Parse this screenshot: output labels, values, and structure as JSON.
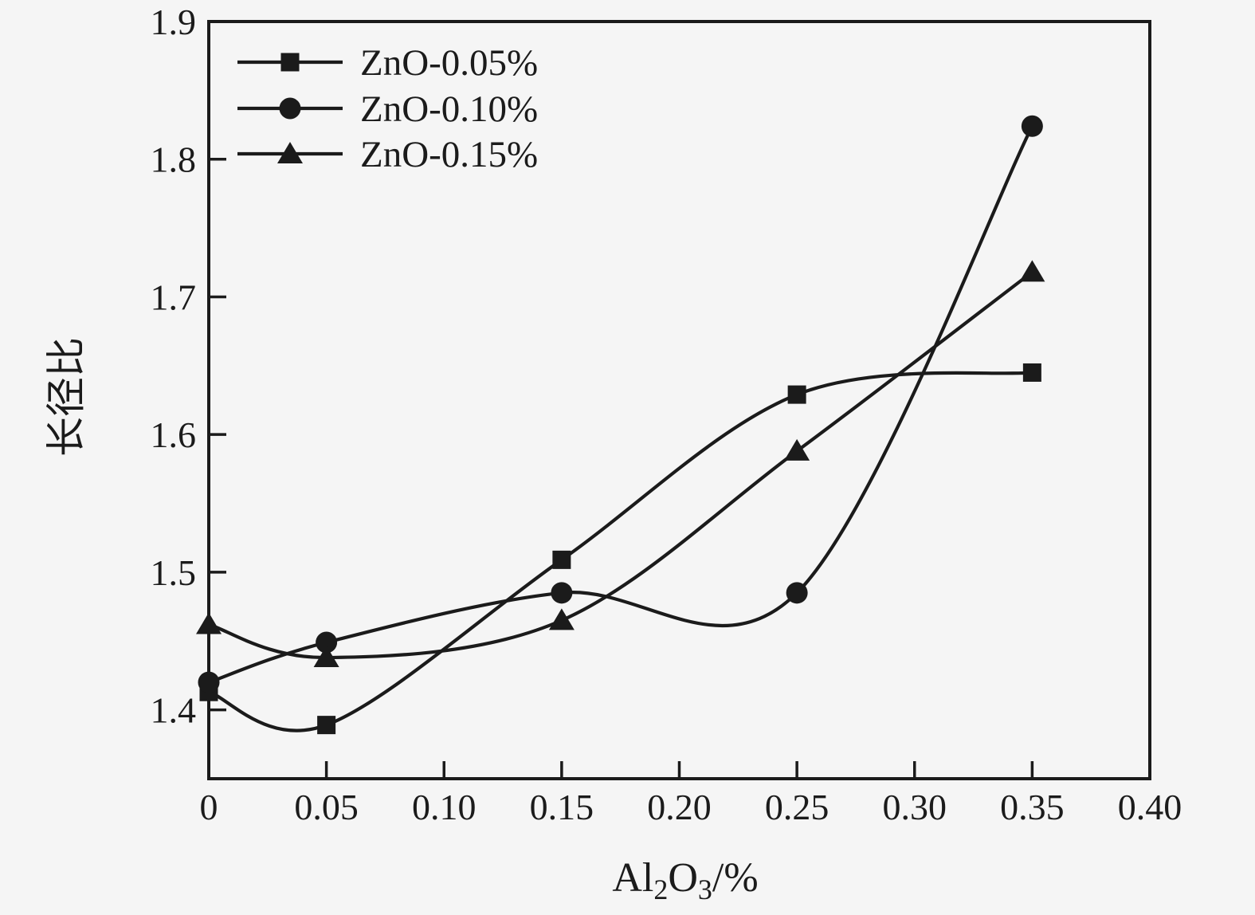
{
  "figure": {
    "kind": "scientific-line-plot",
    "background_color": "#f5f5f5",
    "ink_color": "#1b1b1b"
  },
  "chart_data": {
    "type": "line",
    "title": "",
    "xlabel": "Al2O3/%",
    "xlabel_parts": [
      {
        "text": "Al",
        "sub": false
      },
      {
        "text": "2",
        "sub": true
      },
      {
        "text": "O",
        "sub": false
      },
      {
        "text": "3",
        "sub": true
      },
      {
        "text": "/%",
        "sub": false
      }
    ],
    "ylabel": "长径比",
    "xlim": [
      0,
      0.4
    ],
    "ylim": [
      1.35,
      1.9
    ],
    "grid": false,
    "legend_position": "top-left-inside",
    "x_ticks": [
      {
        "value": 0,
        "label": "0"
      },
      {
        "value": 0.05,
        "label": "0.05"
      },
      {
        "value": 0.1,
        "label": "0.10"
      },
      {
        "value": 0.15,
        "label": "0.15"
      },
      {
        "value": 0.2,
        "label": "0.20"
      },
      {
        "value": 0.25,
        "label": "0.25"
      },
      {
        "value": 0.3,
        "label": "0.30"
      },
      {
        "value": 0.35,
        "label": "0.35"
      },
      {
        "value": 0.4,
        "label": "0.40"
      }
    ],
    "y_ticks": [
      {
        "value": 1.4,
        "label": "1.4"
      },
      {
        "value": 1.5,
        "label": "1.5"
      },
      {
        "value": 1.6,
        "label": "1.6"
      },
      {
        "value": 1.7,
        "label": "1.7"
      },
      {
        "value": 1.8,
        "label": "1.8"
      },
      {
        "value": 1.9,
        "label": "1.9"
      }
    ],
    "series": [
      {
        "name": "ZnO-0.05%",
        "marker": "square-icon",
        "color": "#1b1b1b",
        "x": [
          0,
          0.05,
          0.15,
          0.25,
          0.35
        ],
        "y": [
          1.413,
          1.389,
          1.509,
          1.629,
          1.645
        ]
      },
      {
        "name": "ZnO-0.10%",
        "marker": "circle-icon",
        "color": "#1b1b1b",
        "x": [
          0,
          0.05,
          0.15,
          0.25,
          0.35
        ],
        "y": [
          1.42,
          1.449,
          1.485,
          1.485,
          1.824
        ]
      },
      {
        "name": "ZnO-0.15%",
        "marker": "triangle-icon",
        "color": "#1b1b1b",
        "x": [
          0,
          0.05,
          0.15,
          0.25,
          0.35
        ],
        "y": [
          1.462,
          1.438,
          1.465,
          1.588,
          1.718
        ]
      }
    ]
  }
}
